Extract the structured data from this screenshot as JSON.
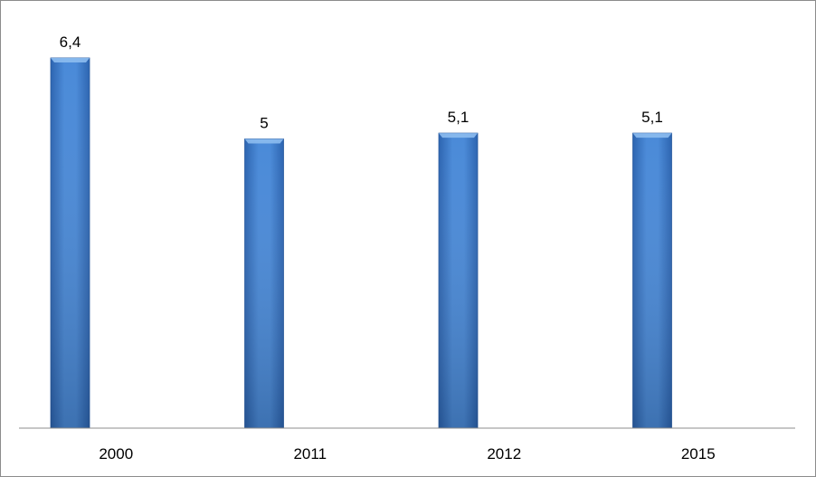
{
  "chart_data": {
    "type": "bar",
    "categories": [
      "2000",
      "2011",
      "2012",
      "2015"
    ],
    "values": [
      6.4,
      5,
      5.1,
      5.1
    ],
    "data_labels": [
      "6,4",
      "5",
      "5,1",
      "5,1"
    ],
    "title": "",
    "xlabel": "",
    "ylabel": "",
    "ylim": [
      0,
      6.4
    ],
    "grid": false,
    "legend": "none",
    "colors": {
      "bar_top": "#5a96e0",
      "bar_mid": "#3e7fd2",
      "bar_bottom": "#2a5fa8",
      "axis": "#8c8c8c"
    }
  }
}
